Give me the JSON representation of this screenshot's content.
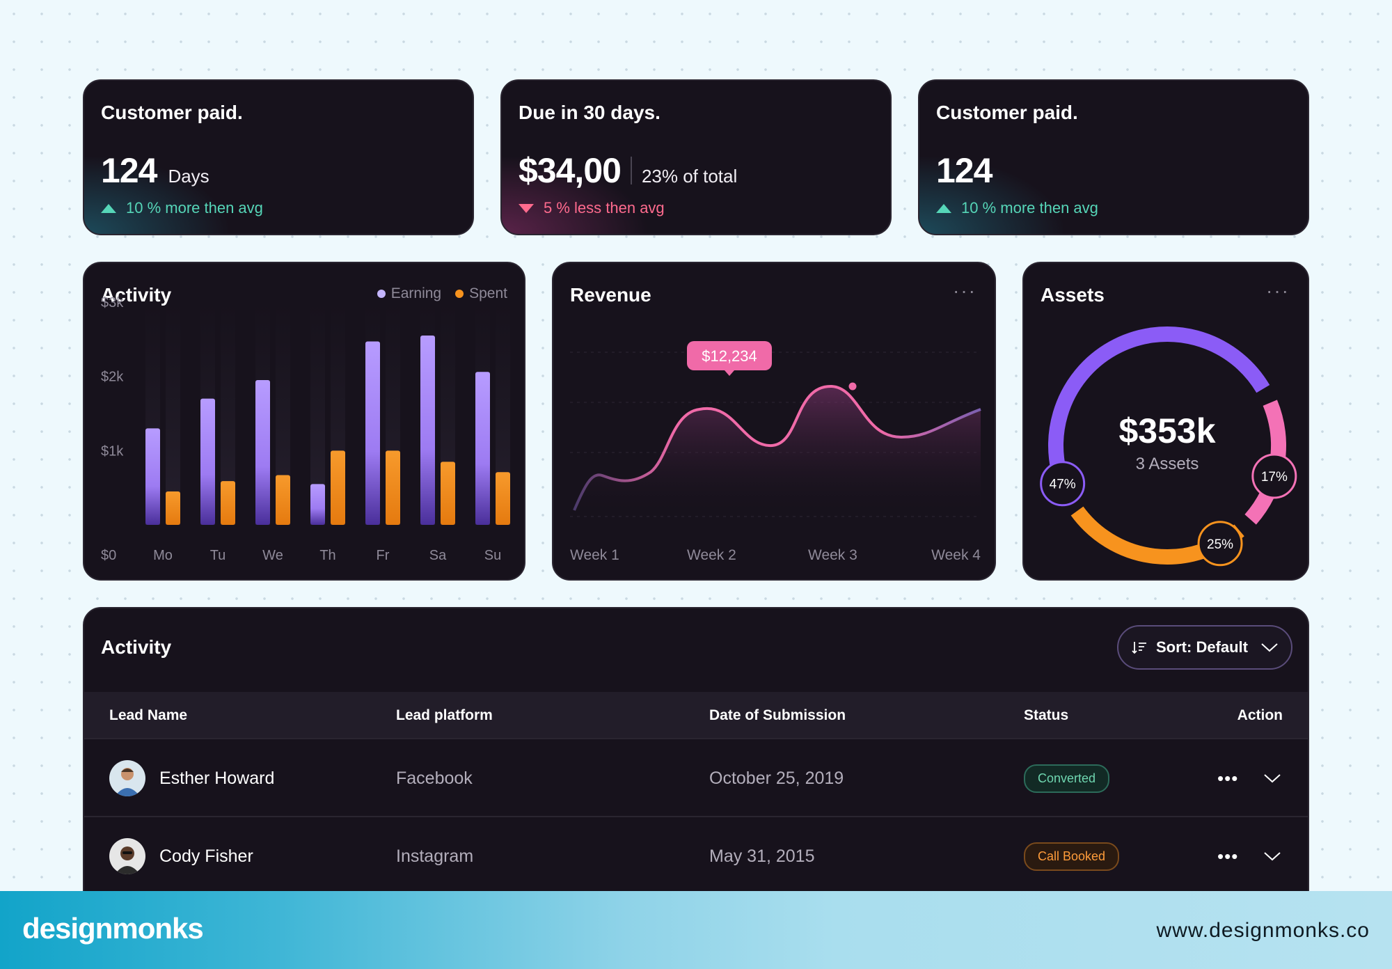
{
  "stats": [
    {
      "title": "Customer paid.",
      "value": "124",
      "unit": "Days",
      "trend": "10 % more then avg",
      "direction": "up"
    },
    {
      "title": "Due in 30 days.",
      "value": "$34,00",
      "unit": "23% of total",
      "trend": "5 % less then avg",
      "direction": "down"
    },
    {
      "title": "Customer paid.",
      "value": "124",
      "unit": "",
      "trend": "10 % more then avg",
      "direction": "up"
    }
  ],
  "activity_chart": {
    "title": "Activity",
    "legend": {
      "earning": "Earning",
      "spent": "Spent"
    },
    "colors": {
      "earning": "#a78bfa",
      "spent": "#f7931e"
    },
    "y_ticks": [
      "$3k",
      "$2k",
      "$1k",
      "$0"
    ],
    "days": [
      "Mo",
      "Tu",
      "We",
      "Th",
      "Fr",
      "Sa",
      "Su"
    ]
  },
  "revenue_chart": {
    "title": "Revenue",
    "tooltip": "$12,234",
    "weeks": [
      "Week 1",
      "Week 2",
      "Week 3",
      "Week 4"
    ],
    "more": "···"
  },
  "assets": {
    "title": "Assets",
    "total": "$353k",
    "subtitle": "3 Assets",
    "more": "···",
    "segments": [
      {
        "label": "47%",
        "color": "#8b5cf6"
      },
      {
        "label": "17%",
        "color": "#f472b6"
      },
      {
        "label": "25%",
        "color": "#f7931e"
      }
    ]
  },
  "chart_data": [
    {
      "type": "bar",
      "title": "Activity",
      "categories": [
        "Mo",
        "Tu",
        "We",
        "Th",
        "Fr",
        "Sa",
        "Su"
      ],
      "series": [
        {
          "name": "Earning",
          "values": [
            1300,
            1700,
            1950,
            550,
            2470,
            2550,
            2060
          ]
        },
        {
          "name": "Spent",
          "values": [
            450,
            590,
            670,
            1000,
            1000,
            850,
            710
          ]
        }
      ],
      "ylim": [
        0,
        3000
      ],
      "y_ticks": [
        "$0",
        "$1k",
        "$2k",
        "$3k"
      ],
      "legend": "top-right"
    },
    {
      "type": "area",
      "title": "Revenue",
      "x": [
        "Week 1",
        "Week 2",
        "Week 3",
        "Week 4"
      ],
      "annotation": "$12,234"
    },
    {
      "type": "pie",
      "title": "Assets",
      "categories": [
        "47%",
        "17%",
        "25%"
      ],
      "values": [
        47,
        17,
        25
      ]
    }
  ],
  "table": {
    "title": "Activity",
    "sort_label": "Sort: Default",
    "headers": [
      "Lead Name",
      "Lead platform",
      "Date of Submission",
      "Status",
      "Action"
    ],
    "rows": [
      {
        "name": "Esther Howard",
        "platform": "Facebook",
        "date": "October 25, 2019",
        "status": "Converted",
        "status_type": "green",
        "dots": "•••"
      },
      {
        "name": "Cody Fisher",
        "platform": "Instagram",
        "date": "May 31, 2015",
        "status": "Call Booked",
        "status_type": "orange",
        "dots": "•••"
      }
    ]
  },
  "footer": {
    "brand": "designmonks",
    "site": "www.designmonks.co"
  }
}
